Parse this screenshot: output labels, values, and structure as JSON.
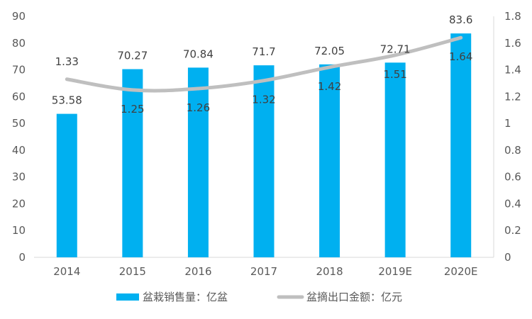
{
  "chart_data": {
    "type": "bar+line",
    "categories": [
      "2014",
      "2015",
      "2016",
      "2017",
      "2018",
      "2019E",
      "2020E"
    ],
    "series": [
      {
        "name": "盆栽销售量：亿盆",
        "type": "bar",
        "axis": "left",
        "color": "#00b0f0",
        "values": [
          53.58,
          70.27,
          70.84,
          71.7,
          72.05,
          72.71,
          83.6
        ],
        "labels": [
          "53.58",
          "70.27",
          "70.84",
          "71.7",
          "72.05",
          "72.71",
          "83.6"
        ]
      },
      {
        "name": "盆摘出口金额：亿元",
        "type": "line",
        "axis": "right",
        "color": "#bfbfbf",
        "values": [
          1.33,
          1.25,
          1.26,
          1.32,
          1.42,
          1.51,
          1.64
        ],
        "labels": [
          "1.33",
          "1.25",
          "1.26",
          "1.32",
          "1.42",
          "1.51",
          "1.64"
        ]
      }
    ],
    "y_left": {
      "min": 0,
      "max": 90,
      "ticks": [
        "0",
        "10",
        "20",
        "30",
        "40",
        "50",
        "60",
        "70",
        "80",
        "90"
      ]
    },
    "y_right": {
      "min": 0,
      "max": 1.8,
      "ticks": [
        "0",
        "0.2",
        "0.4",
        "0.6",
        "0.8",
        "1",
        "1.2",
        "1.4",
        "1.6",
        "1.8"
      ]
    },
    "grid": false,
    "legend_position": "bottom"
  }
}
